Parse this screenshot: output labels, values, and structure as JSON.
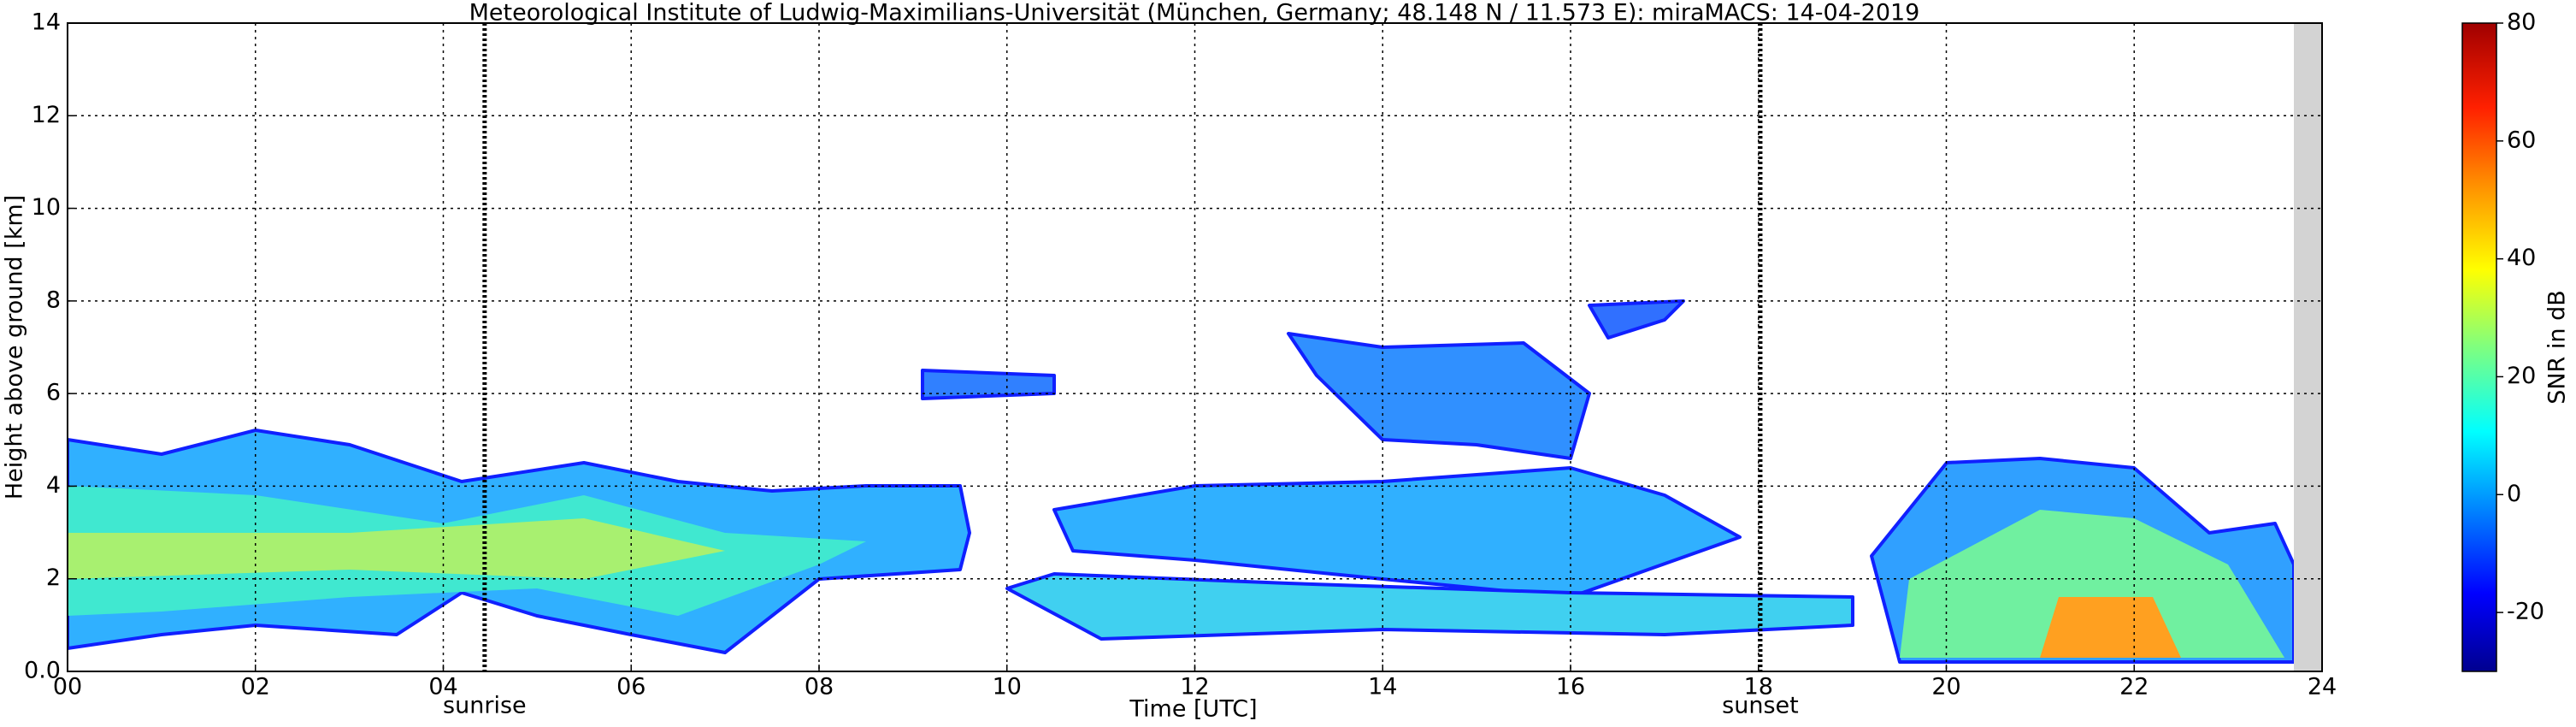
{
  "chart_data": {
    "type": "heatmap",
    "title": "Meteorological Institute of Ludwig-Maximilians-Universität (München, Germany; 48.148 N / 11.573 E):    miraMACS: 14-04-2019",
    "xlabel": "Time [UTC]",
    "ylabel": "Height above ground [km]",
    "xlim": [
      0,
      24
    ],
    "xticks": [
      {
        "value": 0,
        "label": "00"
      },
      {
        "value": 2,
        "label": "02"
      },
      {
        "value": 4,
        "label": "04"
      },
      {
        "value": 6,
        "label": "06"
      },
      {
        "value": 8,
        "label": "08"
      },
      10,
      12,
      14,
      16,
      18,
      20,
      22,
      24
    ],
    "ylim": [
      0,
      14
    ],
    "yticks": [
      {
        "value": 0,
        "label": "0.0"
      },
      2,
      4,
      6,
      8,
      10,
      12,
      14
    ],
    "grid": true,
    "annotations": [
      {
        "label": "sunrise",
        "x": 4.44
      },
      {
        "label": "sunset",
        "x": 18.02
      }
    ],
    "colorbar": {
      "label": "SNR in dB",
      "lim": [
        -30,
        80
      ],
      "ticks": [
        -20,
        0,
        20,
        40,
        60,
        80
      ],
      "colormap": "jet"
    }
  }
}
